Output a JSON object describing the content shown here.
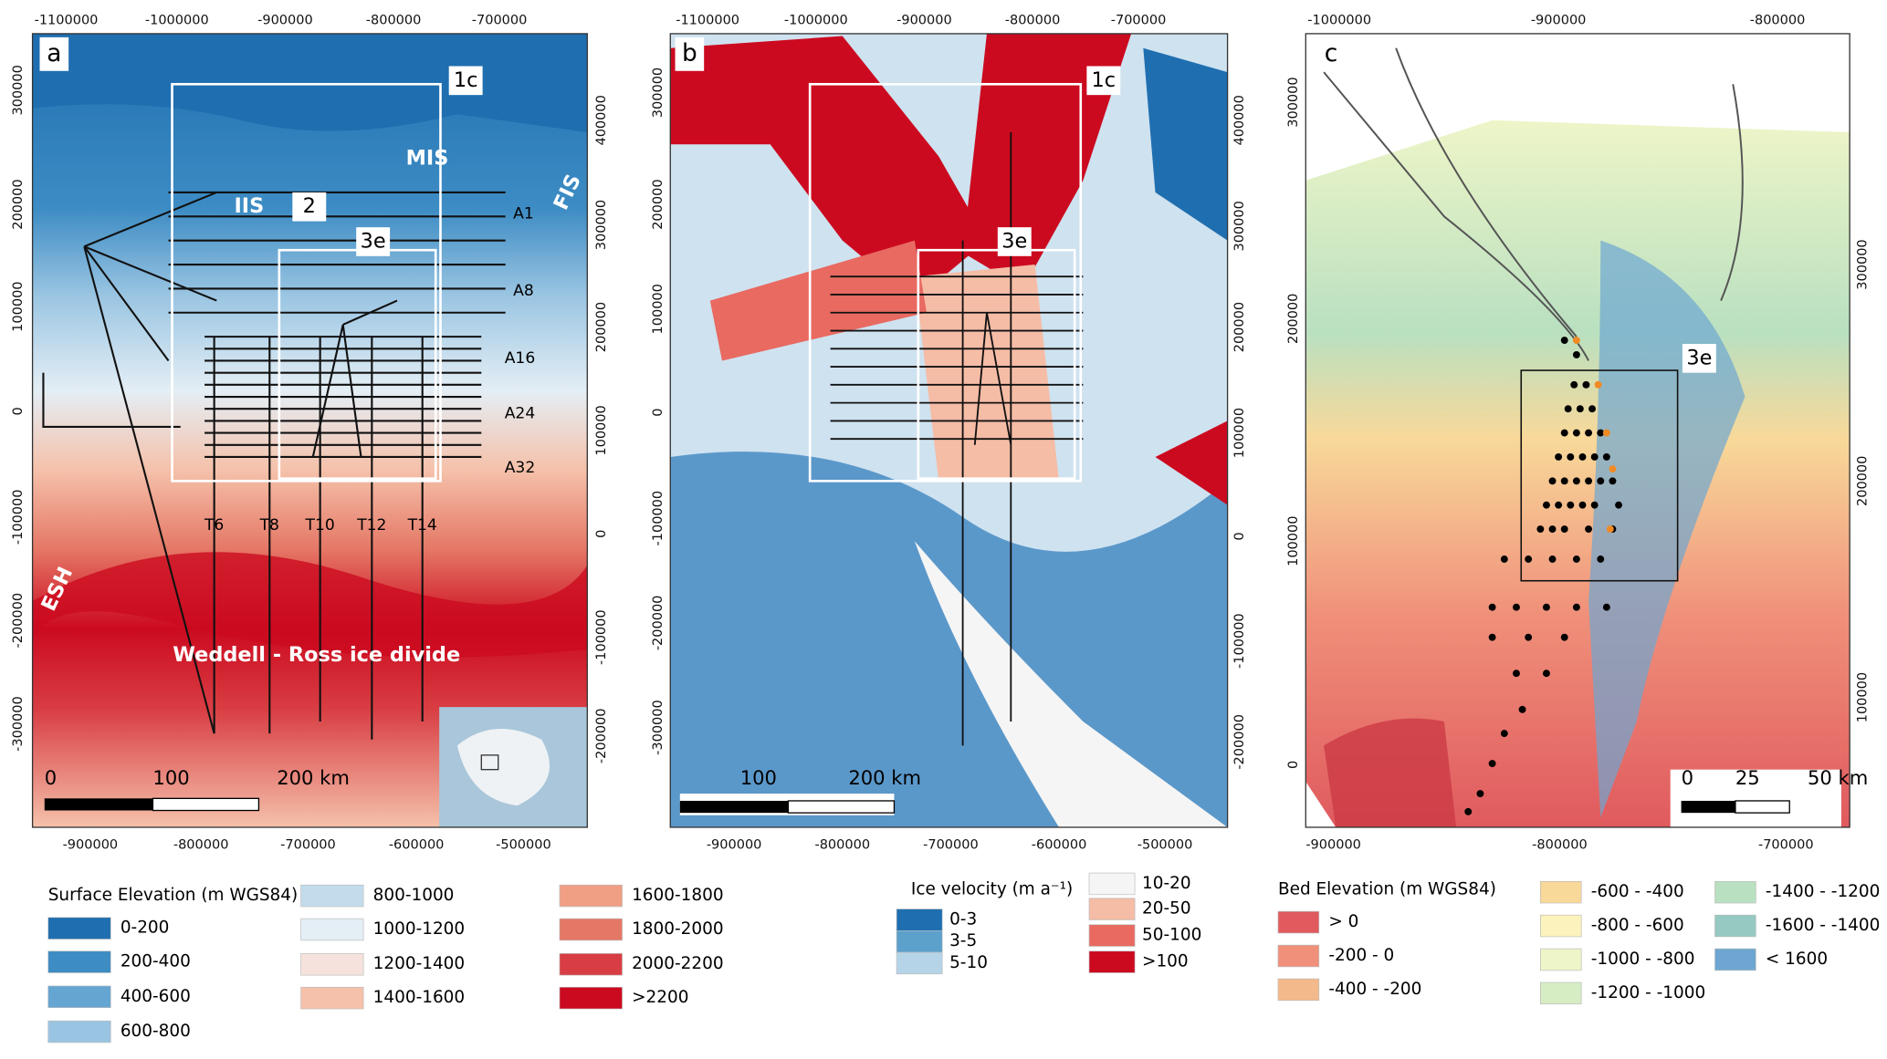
{
  "panels": [
    {
      "label": "a",
      "top_ticks": [
        "-1100000",
        "-1000000",
        "-900000",
        "-800000",
        "-700000"
      ],
      "bottom_ticks": [
        "-900000",
        "-800000",
        "-700000",
        "-600000",
        "-500000"
      ],
      "left_ticks": [
        "300000",
        "200000",
        "100000",
        "0",
        "-100000",
        "-200000",
        "-300000"
      ],
      "right_ticks": [
        "400000",
        "300000",
        "200000",
        "100000",
        "0",
        "-100000",
        "-200000"
      ],
      "annotations": [
        "1c",
        "MIS",
        "FIS",
        "IIS",
        "2",
        "3e",
        "A1",
        "A8",
        "A16",
        "A24",
        "A32",
        "T6",
        "T8",
        "T10",
        "T12",
        "T14",
        "ESH",
        "Weddell - Ross ice divide"
      ],
      "scale_bar": [
        "0",
        "100",
        "200 km"
      ],
      "legend": {
        "title": "Surface Elevation (m WGS84)",
        "items": [
          {
            "label": "0-200",
            "color": "#1f6fb0"
          },
          {
            "label": "200-400",
            "color": "#3d8cc4"
          },
          {
            "label": "400-600",
            "color": "#64a5d2"
          },
          {
            "label": "600-800",
            "color": "#9ac5e2"
          },
          {
            "label": "800-1000",
            "color": "#c2dcec"
          },
          {
            "label": "1000-1200",
            "color": "#e4eef5"
          },
          {
            "label": "1200-1400",
            "color": "#f6e2dc"
          },
          {
            "label": "1400-1600",
            "color": "#f5c1aa"
          },
          {
            "label": "1600-1800",
            "color": "#f09f85"
          },
          {
            "label": "1800-2000",
            "color": "#e57766"
          },
          {
            "label": "2000-2200",
            "color": "#d83d43"
          },
          {
            "label": ">2200",
            "color": "#cc0a1f"
          }
        ]
      }
    },
    {
      "label": "b",
      "top_ticks": [
        "-1100000",
        "-1000000",
        "-900000",
        "-800000",
        "-700000"
      ],
      "bottom_ticks": [
        "-900000",
        "-800000",
        "-700000",
        "-600000",
        "-500000"
      ],
      "left_ticks": [
        "300000",
        "200000",
        "100000",
        "0",
        "-100000",
        "-200000",
        "-300000"
      ],
      "right_ticks": [
        "400000",
        "300000",
        "200000",
        "100000",
        "0",
        "-100000",
        "-200000"
      ],
      "annotations": [
        "1c",
        "3e"
      ],
      "scale_bar": [
        "100",
        "200 km"
      ],
      "legend": {
        "title": "Ice velocity (m a⁻¹)",
        "items": [
          {
            "label": "0-3",
            "color": "#1f6fb0"
          },
          {
            "label": "3-5",
            "color": "#5ca1cc"
          },
          {
            "label": "5-10",
            "color": "#b6d4e8"
          },
          {
            "label": "10-20",
            "color": "#f5f5f5"
          },
          {
            "label": "20-50",
            "color": "#f5bca6"
          },
          {
            "label": "50-100",
            "color": "#e86a61"
          },
          {
            "label": ">100",
            "color": "#cc0a1f"
          }
        ]
      }
    },
    {
      "label": "c",
      "top_ticks": [
        "-1000000",
        "-900000",
        "-800000"
      ],
      "bottom_ticks": [
        "-900000",
        "-800000",
        "-700000"
      ],
      "left_ticks": [
        "300000",
        "200000",
        "100000",
        "0"
      ],
      "right_ticks": [
        "300000",
        "200000",
        "100000"
      ],
      "annotations": [
        "3e"
      ],
      "scale_bar": [
        "0",
        "25",
        "50 km"
      ],
      "legend": {
        "title": "Bed Elevation (m WGS84)",
        "items": [
          {
            "label": "> 0",
            "color": "#e05a5e"
          },
          {
            "label": "-200 - 0",
            "color": "#f0907a"
          },
          {
            "label": "-400 - -200",
            "color": "#f4b98a"
          },
          {
            "label": "-600 - -400",
            "color": "#f8d99a"
          },
          {
            "label": "-800 - -600",
            "color": "#fbf2bd"
          },
          {
            "label": "-1000 - -800",
            "color": "#eef5c8"
          },
          {
            "label": "-1200 - -1000",
            "color": "#d6edc4"
          },
          {
            "label": "-1400 - -1200",
            "color": "#b9e0c0"
          },
          {
            "label": "-1600 - -1400",
            "color": "#95c9c1"
          },
          {
            "label": "< 1600",
            "color": "#6da7d1"
          }
        ]
      }
    }
  ]
}
